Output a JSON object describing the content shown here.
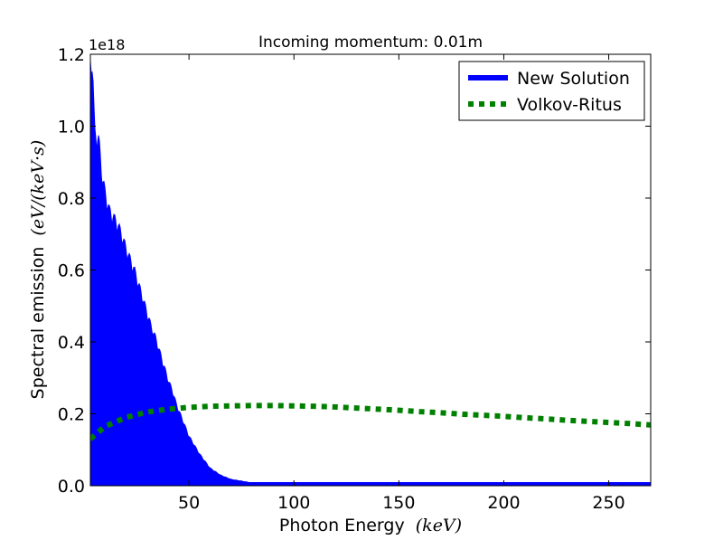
{
  "chart_data": {
    "type": "line",
    "title": "Incoming momentum: 0.01m",
    "xlabel": "Photon Energy",
    "xlabel_unit": "(keV)",
    "ylabel": "Spectral emission",
    "ylabel_unit": "(eV/(keV·s)",
    "y_multiplier_label": "1e18",
    "xlim": [
      3,
      270
    ],
    "ylim": [
      0,
      1.2
    ],
    "x_ticks": [
      50,
      100,
      150,
      200,
      250
    ],
    "x_tick_labels": [
      "50",
      "100",
      "150",
      "200",
      "250"
    ],
    "y_ticks": [
      0.0,
      0.2,
      0.4,
      0.6,
      0.8,
      1.0,
      1.2
    ],
    "y_tick_labels": [
      "0.0",
      "0.2",
      "0.4",
      "0.6",
      "0.8",
      "1.0",
      "1.2"
    ],
    "grid": false,
    "legend_position": "top-right",
    "series": [
      {
        "name": "New Solution",
        "style": "solid-filled-oscillating",
        "color": "#0000ff",
        "envelope_x": [
          3,
          4,
          5,
          7,
          8.5,
          10,
          12,
          14,
          16,
          18,
          20,
          22,
          24,
          26,
          28,
          30,
          32,
          34,
          36,
          38,
          40,
          42,
          44,
          46,
          48,
          50,
          55,
          60,
          65,
          70,
          80,
          90,
          100,
          120,
          150,
          200,
          270
        ],
        "envelope_y": [
          1.2,
          1.2,
          1.0,
          0.98,
          0.88,
          0.83,
          0.78,
          0.76,
          0.74,
          0.71,
          0.67,
          0.64,
          0.61,
          0.57,
          0.53,
          0.49,
          0.45,
          0.42,
          0.38,
          0.34,
          0.3,
          0.27,
          0.23,
          0.2,
          0.17,
          0.14,
          0.09,
          0.05,
          0.03,
          0.018,
          0.008,
          0.004,
          0.002,
          0.001,
          0.0,
          0.0,
          0.0
        ]
      },
      {
        "name": "Volkov-Ritus",
        "style": "dotted",
        "color": "#008000",
        "x": [
          3,
          10,
          20,
          30,
          40,
          50,
          60,
          70,
          80,
          90,
          100,
          110,
          120,
          130,
          140,
          150,
          160,
          170,
          180,
          190,
          200,
          210,
          220,
          230,
          240,
          250,
          260,
          270
        ],
        "y": [
          0.13,
          0.165,
          0.19,
          0.205,
          0.213,
          0.218,
          0.221,
          0.222,
          0.223,
          0.223,
          0.222,
          0.221,
          0.219,
          0.216,
          0.213,
          0.21,
          0.206,
          0.203,
          0.199,
          0.196,
          0.193,
          0.189,
          0.186,
          0.182,
          0.179,
          0.176,
          0.173,
          0.169
        ]
      }
    ]
  }
}
